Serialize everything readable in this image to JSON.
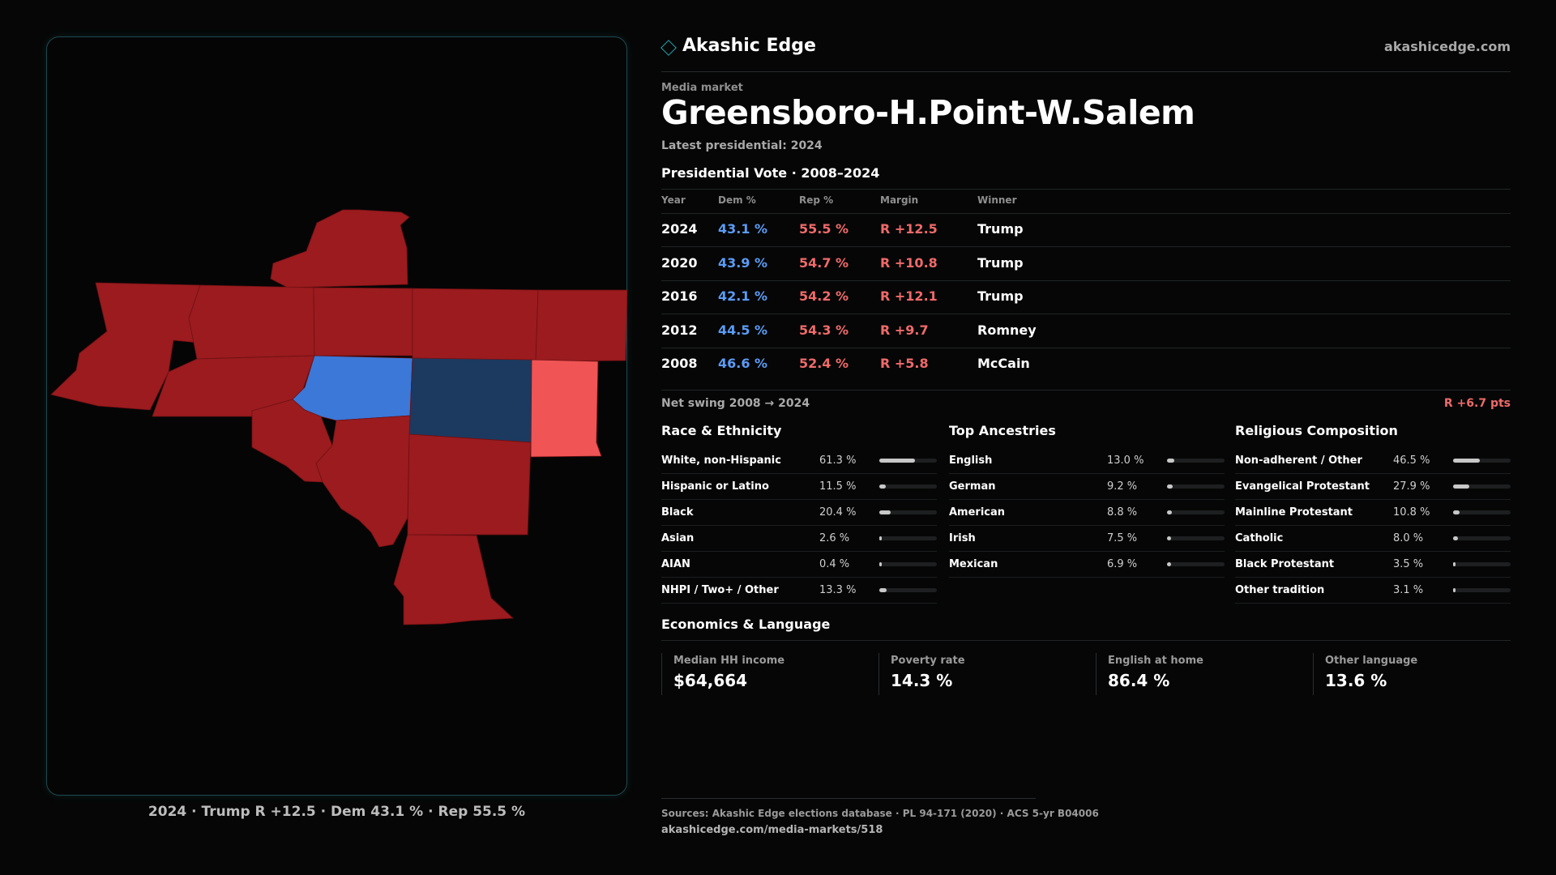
{
  "brand": {
    "name": "Akashic Edge",
    "site": "akashicedge.com"
  },
  "market": {
    "eyebrow": "Media market",
    "name": "Greensboro-H.Point-W.Salem",
    "latest": "Latest presidential: 2024"
  },
  "map": {
    "caption": "2024 · Trump R +12.5 · Dem 43.1 % · Rep 55.5 %",
    "colors": {
      "strong_rep": "#9b1b1f",
      "lean_rep": "#f05455",
      "lean_dem": "#3b78d8",
      "strong_dem": "#1c3a60"
    }
  },
  "vote": {
    "heading": "Presidential Vote · 2008–2024",
    "columns": [
      "Year",
      "Dem %",
      "Rep %",
      "Margin",
      "Winner"
    ],
    "rows": [
      {
        "year": "2024",
        "dem": "43.1 %",
        "rep": "55.5 %",
        "margin": "R +12.5",
        "winner": "Trump"
      },
      {
        "year": "2020",
        "dem": "43.9 %",
        "rep": "54.7 %",
        "margin": "R +10.8",
        "winner": "Trump"
      },
      {
        "year": "2016",
        "dem": "42.1 %",
        "rep": "54.2 %",
        "margin": "R +12.1",
        "winner": "Trump"
      },
      {
        "year": "2012",
        "dem": "44.5 %",
        "rep": "54.3 %",
        "margin": "R +9.7",
        "winner": "Romney"
      },
      {
        "year": "2008",
        "dem": "46.6 %",
        "rep": "52.4 %",
        "margin": "R +5.8",
        "winner": "McCain"
      }
    ],
    "swing_label": "Net swing 2008 → 2024",
    "swing_value": "R +6.7 pts"
  },
  "race": {
    "heading": "Race & Ethnicity",
    "rows": [
      {
        "label": "White, non-Hispanic",
        "value": "61.3 %",
        "pct": 61.3
      },
      {
        "label": "Hispanic or Latino",
        "value": "11.5 %",
        "pct": 11.5
      },
      {
        "label": "Black",
        "value": "20.4 %",
        "pct": 20.4
      },
      {
        "label": "Asian",
        "value": "2.6 %",
        "pct": 2.6
      },
      {
        "label": "AIAN",
        "value": "0.4 %",
        "pct": 0.4
      },
      {
        "label": "NHPI / Two+ / Other",
        "value": "13.3 %",
        "pct": 13.3
      }
    ]
  },
  "ancestry": {
    "heading": "Top Ancestries",
    "rows": [
      {
        "label": "English",
        "value": "13.0 %",
        "pct": 13.0
      },
      {
        "label": "German",
        "value": "9.2 %",
        "pct": 9.2
      },
      {
        "label": "American",
        "value": "8.8 %",
        "pct": 8.8
      },
      {
        "label": "Irish",
        "value": "7.5 %",
        "pct": 7.5
      },
      {
        "label": "Mexican",
        "value": "6.9 %",
        "pct": 6.9
      }
    ]
  },
  "religion": {
    "heading": "Religious Composition",
    "rows": [
      {
        "label": "Non-adherent / Other",
        "value": "46.5 %",
        "pct": 46.5
      },
      {
        "label": "Evangelical Protestant",
        "value": "27.9 %",
        "pct": 27.9
      },
      {
        "label": "Mainline Protestant",
        "value": "10.8 %",
        "pct": 10.8
      },
      {
        "label": "Catholic",
        "value": "8.0 %",
        "pct": 8.0
      },
      {
        "label": "Black Protestant",
        "value": "3.5 %",
        "pct": 3.5
      },
      {
        "label": "Other tradition",
        "value": "3.1 %",
        "pct": 3.1
      }
    ]
  },
  "economics": {
    "heading": "Economics & Language",
    "cards": [
      {
        "label": "Median HH income",
        "value": "$64,664"
      },
      {
        "label": "Poverty rate",
        "value": "14.3 %"
      },
      {
        "label": "English at home",
        "value": "86.4 %"
      },
      {
        "label": "Other language",
        "value": "13.6 %"
      }
    ]
  },
  "footer": {
    "sources": "Sources: Akashic Edge elections database · PL 94-171 (2020) · ACS 5-yr B04006",
    "url": "akashicedge.com/media-markets/518"
  }
}
